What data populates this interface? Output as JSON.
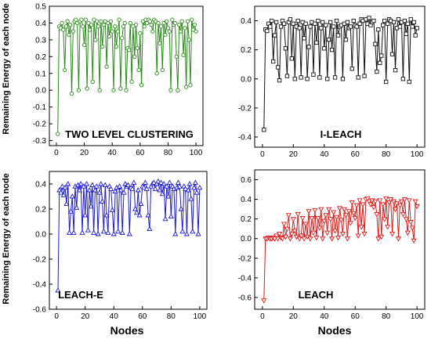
{
  "figure": {
    "x_axis_title": "Nodes",
    "y_axis_title": "Remaining Energy of each node"
  },
  "chart_data": [
    {
      "type": "line",
      "title": "TWO LEVEL CLUSTERING",
      "xlabel": "Nodes",
      "ylabel": "Remaining Energy of each node",
      "color": "#2a8a1a",
      "marker": "circle",
      "xlim": [
        -5,
        105
      ],
      "ylim": [
        -0.33,
        0.5
      ],
      "xticks": [
        0,
        20,
        40,
        60,
        80,
        100
      ],
      "yticks": [
        -0.3,
        -0.2,
        -0.1,
        0.0,
        0.1,
        0.2,
        0.3,
        0.4,
        0.5
      ],
      "series": [
        {
          "x": [
            1,
            2,
            3,
            4,
            5,
            6,
            7,
            8,
            9,
            10,
            11,
            12,
            13,
            14,
            15,
            16,
            17,
            18,
            19,
            20,
            21,
            22,
            23,
            24,
            25,
            26,
            27,
            28,
            29,
            30,
            31,
            32,
            33,
            34,
            35,
            36,
            37,
            38,
            39,
            40,
            41,
            42,
            43,
            44,
            45,
            46,
            47,
            48,
            49,
            50,
            51,
            52,
            53,
            54,
            55,
            56,
            57,
            58,
            59,
            60,
            61,
            62,
            63,
            64,
            65,
            66,
            67,
            68,
            69,
            70,
            71,
            72,
            73,
            74,
            75,
            76,
            77,
            78,
            79,
            80,
            81,
            82,
            83,
            84,
            85,
            86,
            87,
            88,
            89,
            90,
            91,
            92,
            93,
            94,
            95,
            96,
            97,
            98,
            99,
            100
          ],
          "values": [
            -0.26,
            0.38,
            0.37,
            0.4,
            0.36,
            0.12,
            0.38,
            0.41,
            0.33,
            0.39,
            -0.02,
            0.35,
            0.41,
            0.42,
            0.4,
            0.0,
            0.41,
            0.42,
            0.38,
            0.27,
            0.42,
            0.01,
            0.4,
            0.36,
            0.39,
            0.05,
            0.42,
            0.3,
            0.41,
            0.38,
            0.0,
            0.41,
            0.26,
            0.39,
            0.41,
            0.14,
            0.4,
            0.32,
            0.41,
            0.35,
            0.0,
            0.38,
            0.26,
            0.35,
            0.42,
            0.01,
            0.31,
            0.38,
            0.4,
            0.0,
            0.25,
            0.24,
            0.4,
            0.05,
            0.38,
            0.2,
            0.39,
            0.25,
            0.12,
            0.34,
            0.03,
            0.41,
            0.38,
            0.42,
            0.4,
            0.42,
            0.41,
            0.39,
            0.35,
            0.42,
            0.41,
            0.1,
            0.4,
            0.28,
            0.38,
            0.12,
            0.4,
            0.33,
            0.41,
            0.37,
            0.35,
            0.0,
            0.42,
            0.39,
            0.4,
            0.2,
            0.0,
            0.39,
            0.35,
            0.41,
            0.21,
            0.37,
            0.02,
            0.41,
            0.3,
            0.03,
            0.42,
            0.36,
            0.39,
            0.35
          ]
        }
      ]
    },
    {
      "type": "line",
      "title": "I-LEACH",
      "color": "#111111",
      "marker": "square",
      "xlim": [
        -5,
        105
      ],
      "ylim": [
        -0.47,
        0.5
      ],
      "xticks": [
        0,
        20,
        40,
        60,
        80,
        100
      ],
      "yticks": [
        -0.4,
        -0.2,
        0.0,
        0.2,
        0.4
      ],
      "series": [
        {
          "x": [
            1,
            2,
            3,
            4,
            5,
            6,
            7,
            8,
            9,
            10,
            11,
            12,
            13,
            14,
            15,
            16,
            17,
            18,
            19,
            20,
            21,
            22,
            23,
            24,
            25,
            26,
            27,
            28,
            29,
            30,
            31,
            32,
            33,
            34,
            35,
            36,
            37,
            38,
            39,
            40,
            41,
            42,
            43,
            44,
            45,
            46,
            47,
            48,
            49,
            50,
            51,
            52,
            53,
            54,
            55,
            56,
            57,
            58,
            59,
            60,
            61,
            62,
            63,
            64,
            65,
            66,
            67,
            68,
            69,
            70,
            71,
            72,
            73,
            74,
            75,
            76,
            77,
            78,
            79,
            80,
            81,
            82,
            83,
            84,
            85,
            86,
            87,
            88,
            89,
            90,
            91,
            92,
            93,
            94,
            95,
            96,
            97,
            98,
            99,
            100
          ],
          "values": [
            -0.35,
            0.34,
            0.33,
            0.38,
            0.36,
            0.4,
            0.12,
            0.3,
            0.39,
            0.08,
            -0.01,
            0.36,
            0.4,
            0.38,
            0.21,
            0.02,
            0.39,
            0.41,
            0.14,
            0.38,
            0.0,
            0.36,
            0.4,
            0.35,
            0.01,
            0.39,
            0.28,
            0.38,
            0.0,
            0.22,
            0.36,
            0.39,
            0.03,
            0.38,
            0.25,
            0.4,
            0.01,
            0.35,
            0.39,
            0.21,
            0.37,
            0.0,
            0.27,
            0.39,
            0.2,
            0.36,
            0.01,
            0.4,
            0.3,
            0.36,
            0.37,
            0.0,
            0.38,
            0.27,
            0.39,
            0.35,
            0.36,
            0.07,
            0.4,
            0.37,
            0.36,
            0.01,
            0.38,
            0.41,
            0.4,
            0.02,
            0.41,
            0.38,
            0.42,
            0.37,
            0.39,
            0.4,
            0.24,
            0.05,
            0.34,
            0.11,
            0.16,
            0.37,
            0.4,
            -0.02,
            0.38,
            0.41,
            0.4,
            0.17,
            0.39,
            0.06,
            0.35,
            0.41,
            0.36,
            0.39,
            0.0,
            0.4,
            0.31,
            0.38,
            -0.02,
            0.41,
            0.36,
            0.39,
            0.3,
            0.35
          ]
        }
      ]
    },
    {
      "type": "line",
      "title": "LEACH-E",
      "color": "#1a1adb",
      "marker": "triangle-up",
      "xlim": [
        -5,
        105
      ],
      "ylim": [
        -0.6,
        0.5
      ],
      "xticks": [
        0,
        20,
        40,
        60,
        80,
        100
      ],
      "yticks": [
        -0.6,
        -0.4,
        -0.2,
        0.0,
        0.2,
        0.4
      ],
      "series": [
        {
          "x": [
            1,
            2,
            3,
            4,
            5,
            6,
            7,
            8,
            9,
            10,
            11,
            12,
            13,
            14,
            15,
            16,
            17,
            18,
            19,
            20,
            21,
            22,
            23,
            24,
            25,
            26,
            27,
            28,
            29,
            30,
            31,
            32,
            33,
            34,
            35,
            36,
            37,
            38,
            39,
            40,
            41,
            42,
            43,
            44,
            45,
            46,
            47,
            48,
            49,
            50,
            51,
            52,
            53,
            54,
            55,
            56,
            57,
            58,
            59,
            60,
            61,
            62,
            63,
            64,
            65,
            66,
            67,
            68,
            69,
            70,
            71,
            72,
            73,
            74,
            75,
            76,
            77,
            78,
            79,
            80,
            81,
            82,
            83,
            84,
            85,
            86,
            87,
            88,
            89,
            90,
            91,
            92,
            93,
            94,
            95,
            96,
            97,
            98,
            99,
            100
          ],
          "values": [
            -0.45,
            0.35,
            0.33,
            0.38,
            0.31,
            0.37,
            0.24,
            0.4,
            0.01,
            0.18,
            0.3,
            0.01,
            0.38,
            0.21,
            0.39,
            0.35,
            0.4,
            0.01,
            0.38,
            0.15,
            0.4,
            0.03,
            0.35,
            0.22,
            0.39,
            0.01,
            0.35,
            0.38,
            0.0,
            0.33,
            0.4,
            0.26,
            0.02,
            0.39,
            0.15,
            0.01,
            0.38,
            0.36,
            0.19,
            0.0,
            0.34,
            0.37,
            0.02,
            0.38,
            0.35,
            0.01,
            0.33,
            0.4,
            0.38,
            0.39,
            0.0,
            0.37,
            0.36,
            0.41,
            0.2,
            0.17,
            0.35,
            0.15,
            0.24,
            0.38,
            0.37,
            0.41,
            0.36,
            0.15,
            0.04,
            0.38,
            0.4,
            0.41,
            0.36,
            0.4,
            0.42,
            0.35,
            0.41,
            0.32,
            0.4,
            0.12,
            0.38,
            0.3,
            0.41,
            0.14,
            0.38,
            0.36,
            0.0,
            0.37,
            0.41,
            0.38,
            0.2,
            0.02,
            0.38,
            0.36,
            0.0,
            0.35,
            0.4,
            0.28,
            0.02,
            0.37,
            0.41,
            0.33,
            0.0,
            0.37
          ]
        }
      ]
    },
    {
      "type": "line",
      "title": "LEACH",
      "color": "#e01a1a",
      "marker": "triangle-down",
      "xlim": [
        -5,
        105
      ],
      "ylim": [
        -0.72,
        0.7
      ],
      "xticks": [
        0,
        20,
        40,
        60,
        80,
        100
      ],
      "yticks": [
        -0.6,
        -0.4,
        -0.2,
        0.0,
        0.2,
        0.4,
        0.6
      ],
      "series": [
        {
          "x": [
            1,
            2,
            3,
            4,
            5,
            6,
            7,
            8,
            9,
            10,
            11,
            12,
            13,
            14,
            15,
            16,
            17,
            18,
            19,
            20,
            21,
            22,
            23,
            24,
            25,
            26,
            27,
            28,
            29,
            30,
            31,
            32,
            33,
            34,
            35,
            36,
            37,
            38,
            39,
            40,
            41,
            42,
            43,
            44,
            45,
            46,
            47,
            48,
            49,
            50,
            51,
            52,
            53,
            54,
            55,
            56,
            57,
            58,
            59,
            60,
            61,
            62,
            63,
            64,
            65,
            66,
            67,
            68,
            69,
            70,
            71,
            72,
            73,
            74,
            75,
            76,
            77,
            78,
            79,
            80,
            81,
            82,
            83,
            84,
            85,
            86,
            87,
            88,
            89,
            90,
            91,
            92,
            93,
            94,
            95,
            96,
            97,
            98,
            99,
            100
          ],
          "values": [
            -0.63,
            0.0,
            0.0,
            0.01,
            0.0,
            0.0,
            0.01,
            0.0,
            0.03,
            0.0,
            0.05,
            0.01,
            0.0,
            0.15,
            0.02,
            0.1,
            0.24,
            0.0,
            0.05,
            0.2,
            0.08,
            0.02,
            0.25,
            0.0,
            0.03,
            0.21,
            0.0,
            0.15,
            0.02,
            0.28,
            0.0,
            0.21,
            0.06,
            0.29,
            0.01,
            0.21,
            0.11,
            0.3,
            0.0,
            0.18,
            0.24,
            0.06,
            0.3,
            0.2,
            0.0,
            0.27,
            0.08,
            0.22,
            0.01,
            0.31,
            0.19,
            0.05,
            0.3,
            0.24,
            0.0,
            0.28,
            0.16,
            0.37,
            0.26,
            0.21,
            0.34,
            0.03,
            0.39,
            0.12,
            0.35,
            0.05,
            0.4,
            0.41,
            0.38,
            0.35,
            0.39,
            0.32,
            0.38,
            0.25,
            0.0,
            0.39,
            0.02,
            0.35,
            0.2,
            0.41,
            0.12,
            0.37,
            0.4,
            0.05,
            0.38,
            0.3,
            0.36,
            0.0,
            0.34,
            0.38,
            0.25,
            0.4,
            0.2,
            0.06,
            0.39,
            0.17,
            0.11,
            -0.02,
            0.38,
            0.33
          ]
        }
      ]
    }
  ]
}
